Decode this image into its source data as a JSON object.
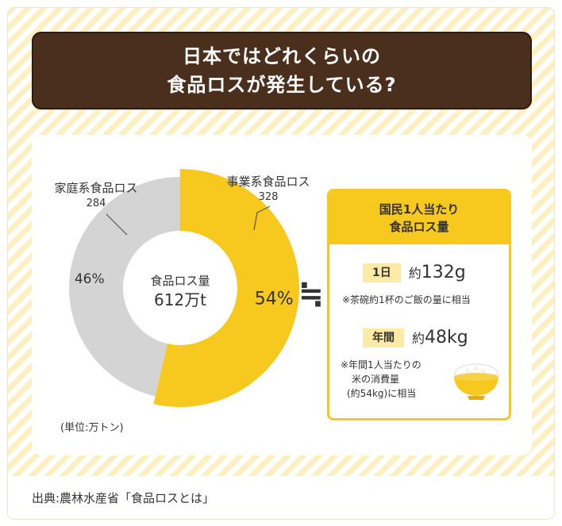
{
  "title": {
    "line1": "日本ではどれくらいの",
    "line2": "食品ロスが発生している?"
  },
  "chart_data": {
    "type": "pie",
    "style": "donut",
    "center_label": {
      "line1": "食品ロス量",
      "line2": "612万t"
    },
    "slices": [
      {
        "name": "家庭系食品ロス",
        "value": 284,
        "percent_label": "46%",
        "color": "#d4d4d4"
      },
      {
        "name": "事業系食品ロス",
        "value": 328,
        "percent_label": "54%",
        "color": "#f7c81e"
      }
    ],
    "unit_note": "(単位:万トン)"
  },
  "approx_symbol": "≒",
  "info": {
    "header_line1": "国民1人当たり",
    "header_line2": "食品ロス量",
    "daily": {
      "tag": "1日",
      "prefix": "約",
      "number": "132",
      "unit": "g",
      "note": "※茶碗約1杯のご飯の量に相当"
    },
    "yearly": {
      "tag": "年間",
      "prefix": "約",
      "number": "48",
      "unit": "kg",
      "note_line1": "※年間1人当たりの",
      "note_line2": "米の消費量",
      "note_line3": "(約54kg)に相当"
    },
    "icon": "rice-bowl-icon"
  },
  "footer": {
    "source": "出典:農林水産省「食品ロスとは」"
  }
}
